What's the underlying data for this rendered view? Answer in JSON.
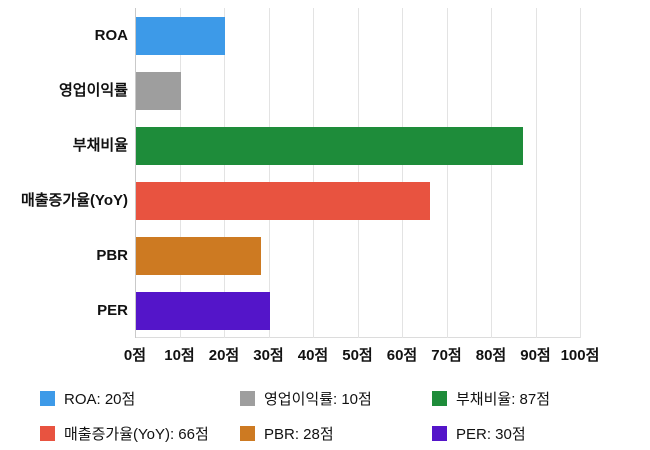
{
  "chart_data": {
    "type": "bar",
    "orientation": "horizontal",
    "title": "",
    "xlabel": "",
    "ylabel": "",
    "unit": "점",
    "categories": [
      "ROA",
      "영업이익률",
      "부채비율",
      "매출증가율(YoY)",
      "PBR",
      "PER"
    ],
    "values": [
      20,
      10,
      87,
      66,
      28,
      30
    ],
    "colors": [
      "#3d9ae8",
      "#9e9e9e",
      "#1e8c3a",
      "#e85340",
      "#cd7a22",
      "#5415c9"
    ],
    "xlim": [
      0,
      100
    ],
    "x_ticks": [
      0,
      10,
      20,
      30,
      40,
      50,
      60,
      70,
      80,
      90,
      100
    ],
    "x_tick_labels": [
      "0점",
      "10점",
      "20점",
      "30점",
      "40점",
      "50점",
      "60점",
      "70점",
      "80점",
      "90점",
      "100점"
    ],
    "grid": true,
    "legend_position": "bottom"
  },
  "legend": {
    "items": [
      {
        "label": "ROA: 20점",
        "color": "#3d9ae8"
      },
      {
        "label": "영업이익률: 10점",
        "color": "#9e9e9e"
      },
      {
        "label": "부채비율: 87점",
        "color": "#1e8c3a"
      },
      {
        "label": "매출증가율(YoY): 66점",
        "color": "#e85340"
      },
      {
        "label": "PBR: 28점",
        "color": "#cd7a22"
      },
      {
        "label": "PER: 30점",
        "color": "#5415c9"
      }
    ]
  }
}
